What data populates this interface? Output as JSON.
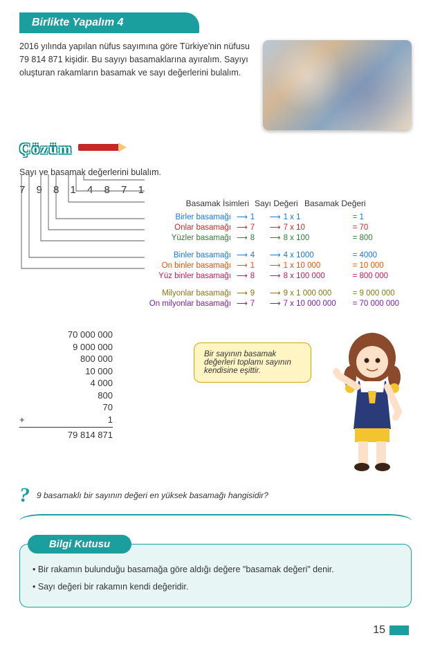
{
  "header": {
    "title": "Birlikte Yapalım 4"
  },
  "intro": "2016 yılında yapılan nüfus sayımına göre Türkiye'nin nüfusu 79 814 871 kişidir. Bu sayıyı basamaklarına ayıralım. Sayıyı oluşturan rakamların basamak ve sayı değerlerini bulalım.",
  "cozum_label": "Çözüm",
  "subhead": "Sayı ve basamak değerlerini bulalım.",
  "digits": "7 9  8 1 4  8 7 1",
  "table": {
    "h1": "Basamak İsimleri",
    "h2": "Sayı Değeri",
    "h3": "Basamak Değeri"
  },
  "rows": [
    {
      "name": "Birler basamağı",
      "digit": "1",
      "calc": "1 x 1",
      "result": "= 1",
      "color": "c-blue"
    },
    {
      "name": "Onlar basamağı",
      "digit": "7",
      "calc": "7 x 10",
      "result": "= 70",
      "color": "c-red"
    },
    {
      "name": "Yüzler basamağı",
      "digit": "8",
      "calc": "8 x 100",
      "result": "= 800",
      "color": "c-green"
    },
    {
      "name": "Binler basamağı",
      "digit": "4",
      "calc": "4 x 1000",
      "result": "= 4000",
      "color": "c-blue"
    },
    {
      "name": "On binler basamağı",
      "digit": "1",
      "calc": "1 x 10 000",
      "result": "= 10 000",
      "color": "c-orange"
    },
    {
      "name": "Yüz binler basamağı",
      "digit": "8",
      "calc": "8 x 100 000",
      "result": "= 800 000",
      "color": "c-magenta"
    },
    {
      "name": "Milyonlar basamağı",
      "digit": "9",
      "calc": "9 x 1 000 000",
      "result": "= 9 000 000",
      "color": "c-olive"
    },
    {
      "name": "On milyonlar basamağı",
      "digit": "7",
      "calc": "7 x 10 000 000",
      "result": "= 70 000 000",
      "color": "c-purple"
    }
  ],
  "sum": {
    "lines": [
      "70 000 000",
      "9 000 000",
      "800 000",
      "10 000",
      "4 000",
      "800",
      "70",
      "1"
    ],
    "total": "79 814 871"
  },
  "speech": "Bir sayının basamak değerleri toplamı sayının kendisine eşittir.",
  "question": "9 basamaklı bir sayının değeri en yüksek basamağı hangisidir?",
  "infobox": {
    "title": "Bilgi Kutusu",
    "b1": "• Bir rakamın bulunduğu basamağa göre aldığı değere \"basamak değeri\" denir.",
    "b2": "• Sayı değeri bir rakamın kendi değeridir."
  },
  "page_number": "15"
}
